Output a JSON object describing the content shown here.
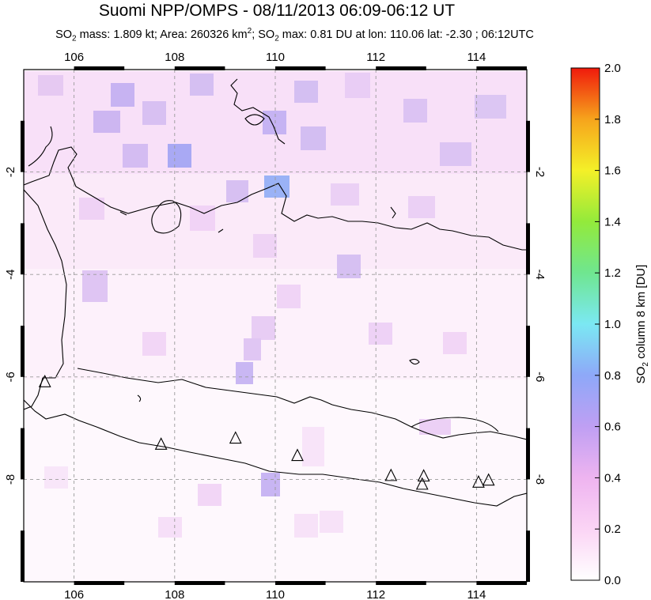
{
  "title": "Suomi NPP/OMPS - 08/11/2013 06:09-06:12 UT",
  "subtitle": {
    "mass_prefix": "SO",
    "mass_sub": "2",
    "mass_text": " mass: 1.809 kt; Area: 260326 km",
    "area_sup": "2",
    "max_prefix": "; SO",
    "max_sub": "2",
    "max_text": " max: 0.81 DU at lon: 110.06 lat: -2.30 ; 06:12UTC"
  },
  "map": {
    "lon_range": [
      105,
      115
    ],
    "lat_range": [
      -10,
      0
    ],
    "lon_ticks": [
      "106",
      "108",
      "110",
      "112",
      "114"
    ],
    "lat_ticks": [
      "-2",
      "-4",
      "-6",
      "-8"
    ],
    "grid": "dashed",
    "frame": "black-and-white alternating border"
  },
  "colorbar": {
    "label_prefix": "SO",
    "label_sub": "2",
    "label_text": " column 8 km [DU]",
    "min": 0.0,
    "max": 2.0,
    "ticks": [
      "0.0",
      "0.2",
      "0.4",
      "0.6",
      "0.8",
      "1.0",
      "1.2",
      "1.4",
      "1.6",
      "1.8",
      "2.0"
    ],
    "colors": [
      "#ffffff",
      "#fbd4f5",
      "#eeb4f0",
      "#bf9ff3",
      "#8ea8f8",
      "#7be8f3",
      "#6fe690",
      "#93ea3b",
      "#f4f028",
      "#f6a41c",
      "#f01a0c"
    ]
  },
  "volcano_markers": [
    {
      "lon": 105.42,
      "lat": -6.1
    },
    {
      "lon": 107.73,
      "lat": -7.32
    },
    {
      "lon": 109.21,
      "lat": -7.2
    },
    {
      "lon": 110.44,
      "lat": -7.54
    },
    {
      "lon": 112.3,
      "lat": -7.93
    },
    {
      "lon": 112.95,
      "lat": -7.94
    },
    {
      "lon": 112.92,
      "lat": -8.1
    },
    {
      "lon": 114.04,
      "lat": -8.06
    },
    {
      "lon": 114.24,
      "lat": -8.02
    }
  ]
}
